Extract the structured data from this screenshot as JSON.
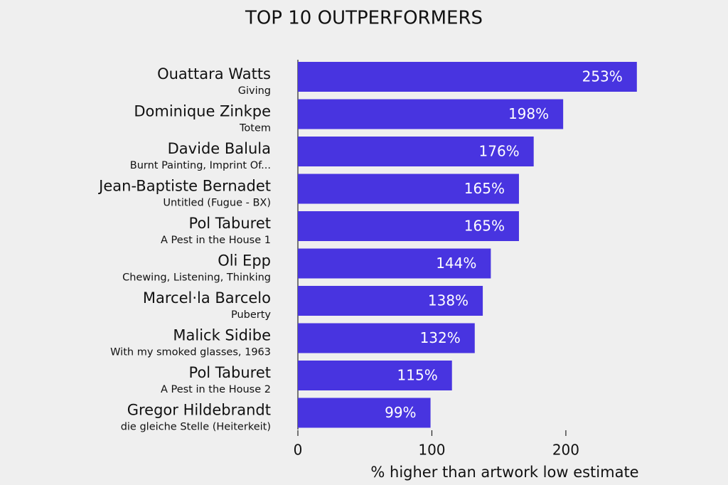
{
  "chart_data": {
    "type": "barh",
    "title": "TOP 10 OUTPERFORMERS",
    "categories": [
      "Ouattara Watts",
      "Dominique Zinkpe",
      "Davide Balula",
      "Jean-Baptiste Bernadet",
      "Pol Taburet",
      "Oli Epp",
      "Marcel·la Barcelo",
      "Malick Sidibe",
      "Pol Taburet",
      "Gregor Hildebrandt"
    ],
    "subtitles": [
      "Giving",
      "Totem",
      "Burnt Painting, Imprint Of...",
      "Untitled (Fugue - BX)",
      "A Pest in the House 1",
      "Chewing, Listening, Thinking",
      "Puberty",
      "With my smoked glasses, 1963",
      "A Pest in the House 2",
      "die gleiche Stelle (Heiterkeit)"
    ],
    "values": [
      253,
      198,
      176,
      165,
      165,
      144,
      138,
      132,
      115,
      99
    ],
    "value_labels": [
      "253%",
      "198%",
      "176%",
      "165%",
      "165%",
      "144%",
      "138%",
      "132%",
      "115%",
      "99%"
    ],
    "color": "#4834e0",
    "xlabel": "% higher than artwork low estimate",
    "xlim": [
      0,
      260
    ],
    "xticks": [
      0,
      100,
      200
    ]
  }
}
